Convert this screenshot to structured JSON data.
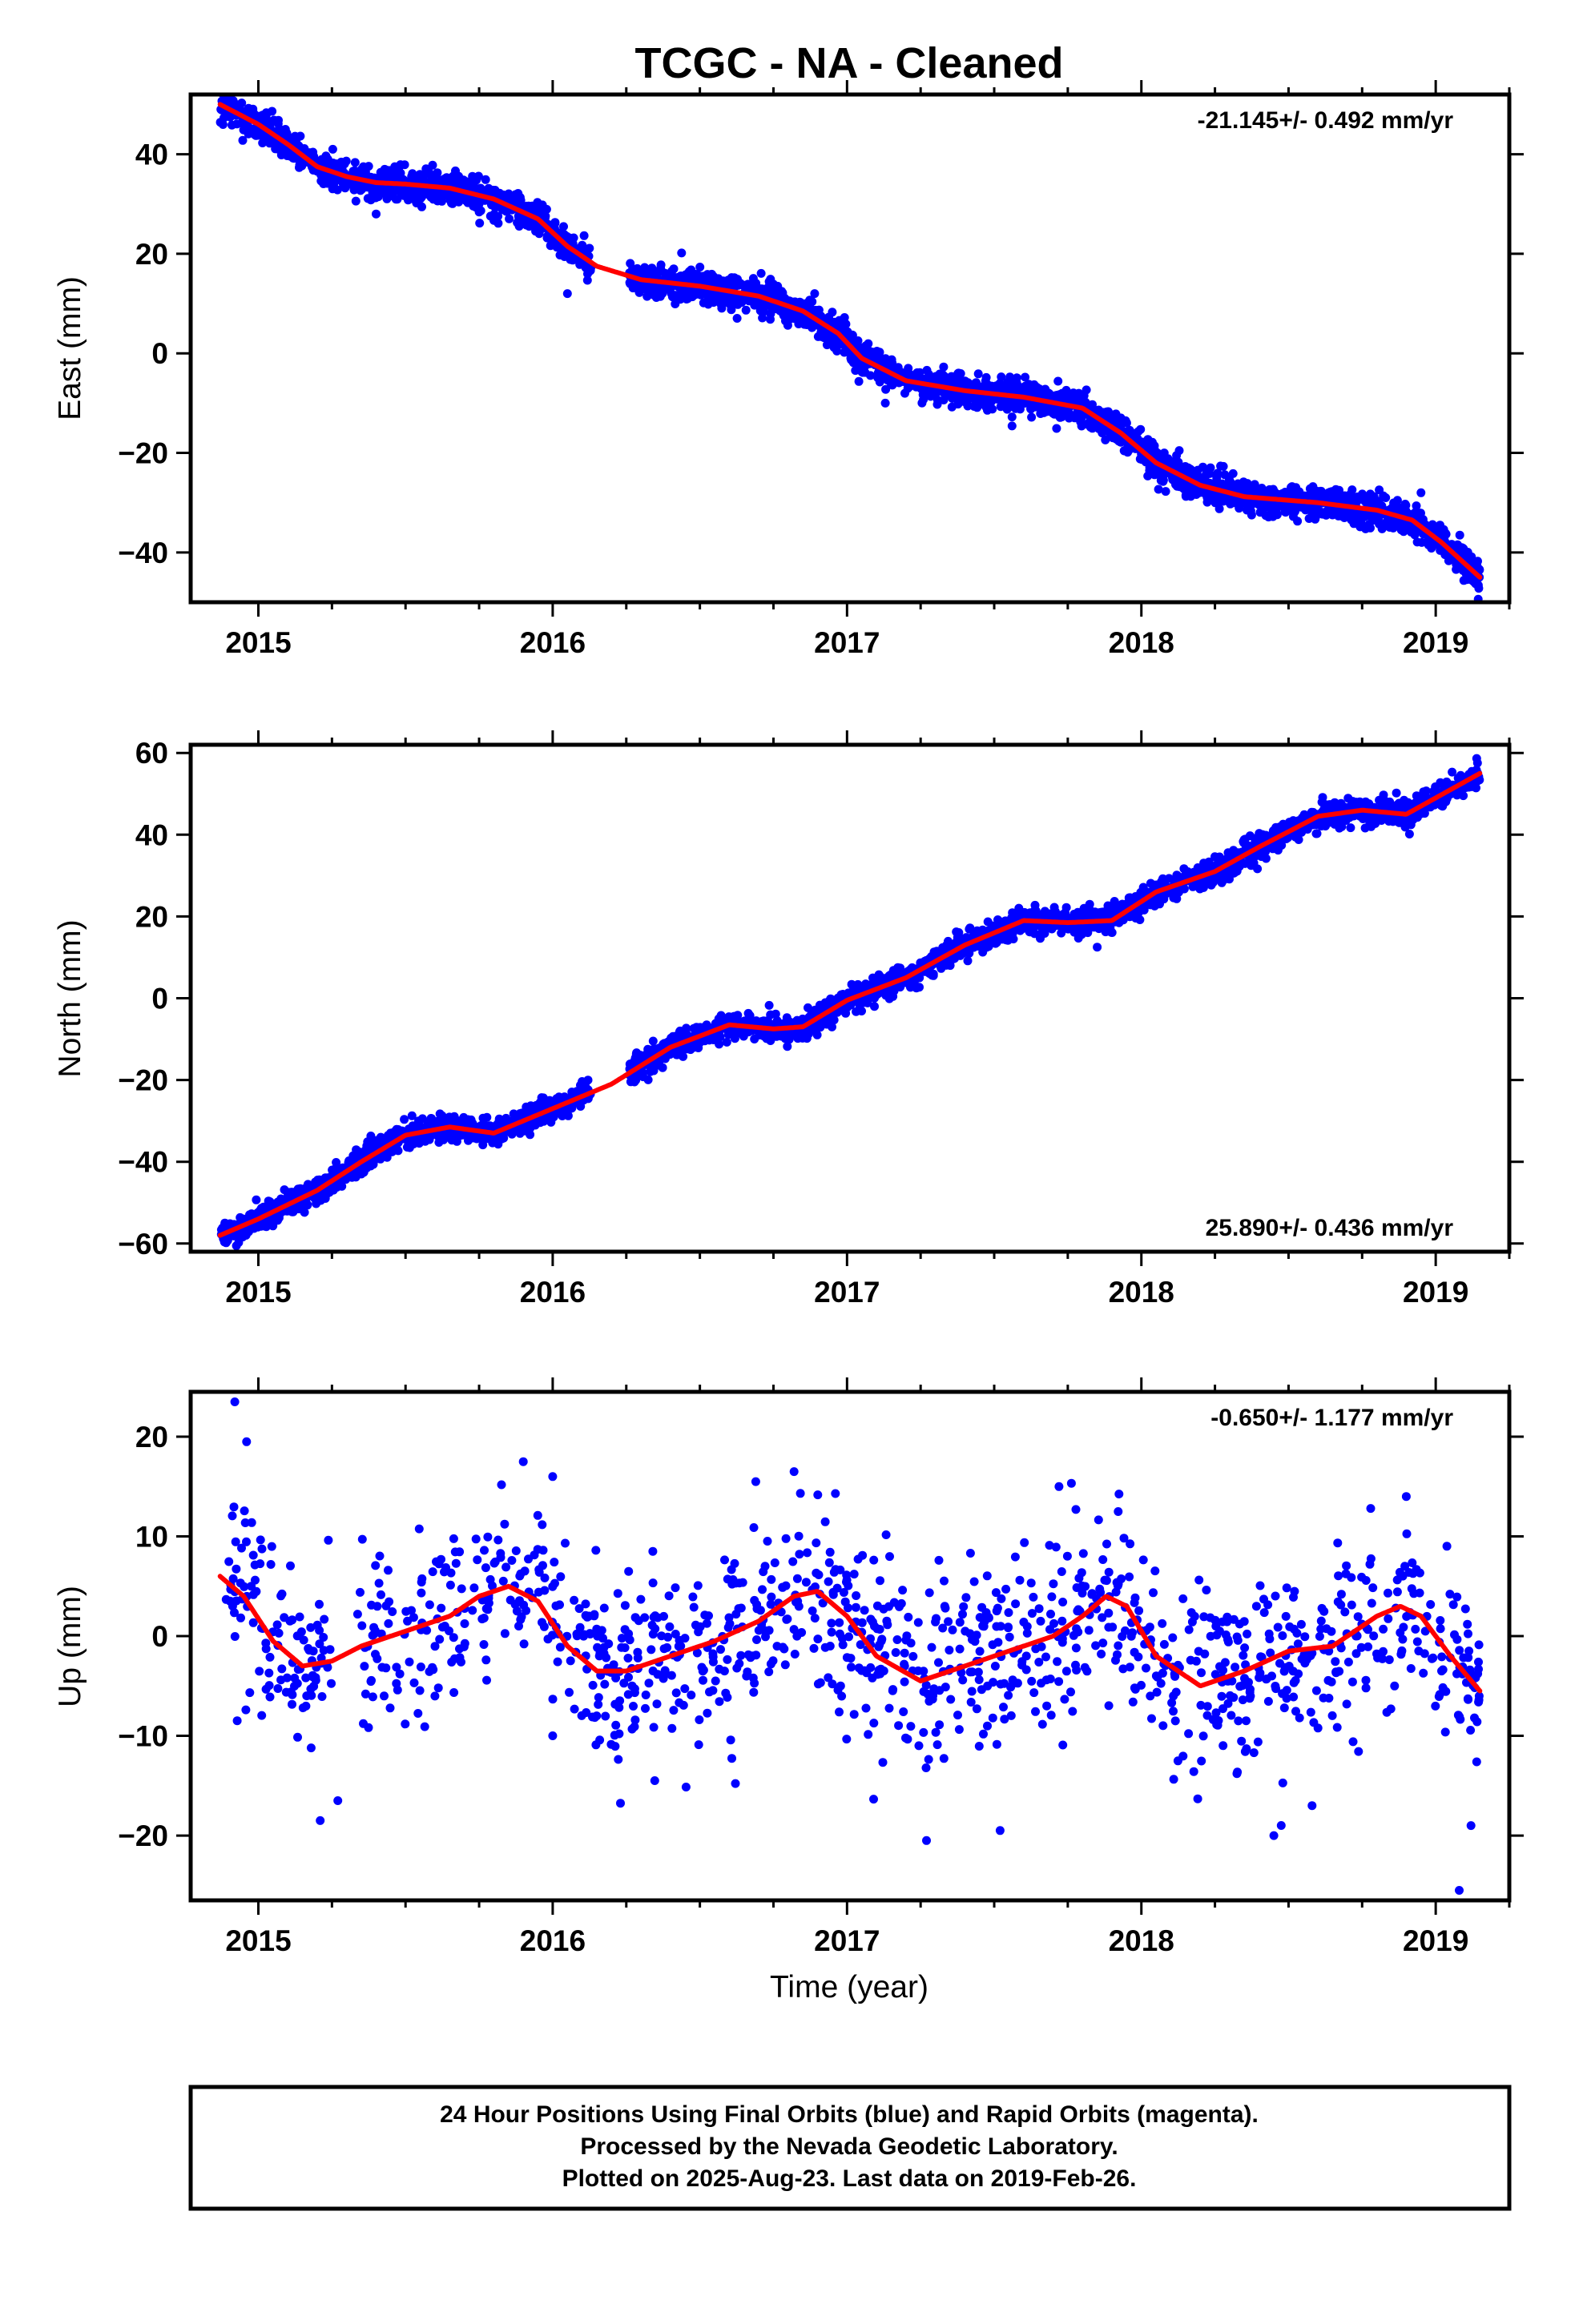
{
  "chart_data": [
    {
      "type": "scatter",
      "title": "TCGC  - NA - Cleaned",
      "ylabel": "East (mm)",
      "xlabel": "",
      "xlim": [
        2014.77,
        2019.25
      ],
      "ylim": [
        -50,
        52
      ],
      "xticks": [
        2015,
        2016,
        2017,
        2018,
        2019
      ],
      "yticks": [
        -40,
        -20,
        0,
        20,
        40
      ],
      "rate_label": "-21.145+/- 0.492 mm/yr",
      "rate_position": "top-right",
      "grid": false,
      "series": [
        {
          "kind": "points",
          "color": "#0000ff",
          "seed": 11,
          "noise": 1.6,
          "density": 760,
          "gaps": [
            [
              2016.13,
              2016.26
            ]
          ],
          "outliers": [
            [
              2015.4,
              28.0
            ],
            [
              2016.05,
              12.0
            ],
            [
              2017.13,
              -10.0
            ],
            [
              2017.95,
              -14.0
            ],
            [
              2018.83,
              -29.0
            ],
            [
              2018.95,
              -28.0
            ]
          ]
        },
        {
          "kind": "line",
          "color": "#ff0000",
          "x": [
            2014.87,
            2015.0,
            2015.1,
            2015.2,
            2015.3,
            2015.4,
            2015.5,
            2015.65,
            2015.8,
            2015.95,
            2016.05,
            2016.15,
            2016.3,
            2016.5,
            2016.7,
            2016.85,
            2016.97,
            2017.05,
            2017.2,
            2017.4,
            2017.6,
            2017.8,
            2017.93,
            2018.05,
            2018.2,
            2018.35,
            2018.6,
            2018.8,
            2018.92,
            2019.02,
            2019.15
          ],
          "y": [
            50.0,
            46.0,
            42.0,
            37.5,
            35.5,
            34.3,
            34.0,
            33.2,
            31.0,
            27.0,
            21.5,
            17.5,
            14.8,
            13.5,
            11.5,
            8.5,
            4.0,
            -1.0,
            -5.5,
            -7.5,
            -8.8,
            -11.0,
            -16.0,
            -22.0,
            -26.5,
            -28.8,
            -30.0,
            -31.5,
            -33.5,
            -38.0,
            -45.0
          ]
        }
      ]
    },
    {
      "type": "scatter",
      "title": "",
      "ylabel": "North (mm)",
      "xlabel": "",
      "xlim": [
        2014.77,
        2019.25
      ],
      "ylim": [
        -62,
        62
      ],
      "xticks": [
        2015,
        2016,
        2017,
        2018,
        2019
      ],
      "yticks": [
        -60,
        -40,
        -20,
        0,
        20,
        40,
        60
      ],
      "rate_label": "25.890+/- 0.436 mm/yr",
      "rate_position": "bottom-right",
      "grid": false,
      "series": [
        {
          "kind": "points",
          "color": "#0000ff",
          "seed": 23,
          "noise": 1.5,
          "density": 760,
          "gaps": [
            [
              2016.13,
              2016.26
            ]
          ],
          "outliers": [
            [
              2017.85,
              12.5
            ],
            [
              2015.35,
              -43.0
            ]
          ]
        },
        {
          "kind": "line",
          "color": "#ff0000",
          "x": [
            2014.87,
            2015.0,
            2015.2,
            2015.35,
            2015.5,
            2015.65,
            2015.8,
            2016.0,
            2016.2,
            2016.4,
            2016.6,
            2016.75,
            2016.85,
            2017.0,
            2017.2,
            2017.4,
            2017.6,
            2017.75,
            2017.9,
            2018.05,
            2018.25,
            2018.4,
            2018.6,
            2018.75,
            2018.9,
            2019.05,
            2019.15
          ],
          "y": [
            -58.0,
            -54.0,
            -47.0,
            -40.0,
            -33.5,
            -31.5,
            -33.0,
            -27.0,
            -21.0,
            -12.0,
            -6.5,
            -7.5,
            -7.0,
            -0.5,
            5.0,
            13.0,
            19.0,
            18.5,
            19.0,
            26.0,
            31.0,
            37.0,
            44.5,
            46.0,
            45.0,
            51.0,
            55.0
          ]
        }
      ]
    },
    {
      "type": "scatter",
      "title": "",
      "ylabel": "Up (mm)",
      "xlabel": "Time (year)",
      "xlim": [
        2014.77,
        2019.25
      ],
      "ylim": [
        -26.5,
        24.5
      ],
      "xticks": [
        2015,
        2016,
        2017,
        2018,
        2019
      ],
      "yticks": [
        -20,
        -10,
        0,
        10,
        20
      ],
      "rate_label": "-0.650+/- 1.177 mm/yr",
      "rate_position": "top-right",
      "grid": false,
      "series": [
        {
          "kind": "points",
          "color": "#0000ff",
          "seed": 37,
          "noise": 4.6,
          "density": 300,
          "gaps": [
            [
              2015.25,
              2015.33
            ]
          ],
          "outliers": [
            [
              2014.92,
              23.5
            ],
            [
              2014.96,
              19.5
            ],
            [
              2015.21,
              -18.5
            ],
            [
              2015.27,
              -16.5
            ],
            [
              2015.9,
              17.5
            ],
            [
              2016.0,
              16.0
            ],
            [
              2016.69,
              15.5
            ],
            [
              2016.82,
              16.5
            ],
            [
              2017.27,
              -20.5
            ],
            [
              2017.52,
              -19.5
            ],
            [
              2017.72,
              15.0
            ],
            [
              2018.45,
              -20.0
            ],
            [
              2018.9,
              14.0
            ],
            [
              2019.08,
              -25.5
            ],
            [
              2019.12,
              -19.0
            ],
            [
              2018.58,
              -17.0
            ]
          ]
        },
        {
          "kind": "line",
          "color": "#ff0000",
          "x": [
            2014.87,
            2014.95,
            2015.05,
            2015.15,
            2015.25,
            2015.35,
            2015.5,
            2015.65,
            2015.75,
            2015.85,
            2015.95,
            2016.05,
            2016.15,
            2016.25,
            2016.4,
            2016.55,
            2016.7,
            2016.82,
            2016.9,
            2017.0,
            2017.1,
            2017.25,
            2017.4,
            2017.55,
            2017.7,
            2017.8,
            2017.88,
            2017.95,
            2018.05,
            2018.2,
            2018.35,
            2018.5,
            2018.65,
            2018.8,
            2018.88,
            2018.95,
            2019.05,
            2019.15
          ],
          "y": [
            6.0,
            4.0,
            -0.5,
            -3.0,
            -2.5,
            -1.0,
            0.5,
            2.0,
            4.0,
            5.0,
            3.5,
            -1.0,
            -3.5,
            -3.5,
            -2.0,
            -0.5,
            1.5,
            4.0,
            4.5,
            2.0,
            -2.0,
            -4.5,
            -3.0,
            -1.5,
            0.0,
            2.0,
            4.0,
            3.0,
            -2.0,
            -5.0,
            -3.5,
            -1.5,
            -1.0,
            2.0,
            3.0,
            2.0,
            -2.0,
            -5.5
          ]
        }
      ]
    }
  ],
  "footer": {
    "line1": "24 Hour Positions Using Final Orbits (blue) and Rapid Orbits (magenta).",
    "line2": "Processed by the Nevada Geodetic Laboratory.",
    "line3": "Plotted on 2025-Aug-23. Last data on 2019-Feb-26."
  }
}
